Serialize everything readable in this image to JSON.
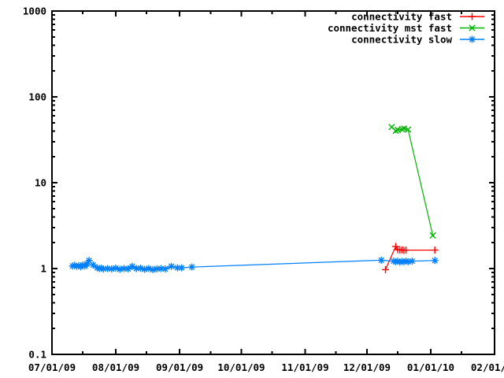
{
  "chart_data": {
    "type": "line",
    "title": "",
    "xlabel": "",
    "ylabel": "",
    "grid": false,
    "background": "#ffffff",
    "border_color": "#000000",
    "legend_position": "top-right-inside",
    "x_axis": {
      "scale": "time",
      "format": "MM/DD/YY",
      "range": [
        "07/01/09",
        "02/01/10"
      ],
      "major_tick_labels": [
        "07/01/09",
        "08/01/09",
        "09/01/09",
        "10/01/09",
        "11/01/09",
        "12/01/09",
        "01/01/10",
        "02/01/10"
      ],
      "minor_ticks": [
        "07/16/09",
        "08/16/09",
        "09/16/09",
        "10/16/09",
        "11/16/09",
        "12/16/09",
        "01/16/10"
      ]
    },
    "y_axis": {
      "scale": "log",
      "range": [
        0.1,
        1000
      ],
      "major_tick_labels": [
        "0.1",
        "1",
        "10",
        "100",
        "1000"
      ]
    },
    "series": [
      {
        "name": "connectivity fast",
        "color": "#ff0000",
        "marker": "plus",
        "points": [
          [
            "12/10/09",
            0.97
          ],
          [
            "12/15/09",
            1.81
          ],
          [
            "12/16/09",
            1.66
          ],
          [
            "12/17/09",
            1.64
          ],
          [
            "12/18/09",
            1.65
          ],
          [
            "12/19/09",
            1.63
          ],
          [
            "12/20/09",
            1.64
          ],
          [
            "01/03/10",
            1.64
          ]
        ]
      },
      {
        "name": "connectivity mst fast",
        "color": "#00b400",
        "marker": "cross",
        "points": [
          [
            "12/13/09",
            44.5
          ],
          [
            "12/15/09",
            40.3
          ],
          [
            "12/16/09",
            41.2
          ],
          [
            "12/18/09",
            42.0
          ],
          [
            "12/19/09",
            42.8
          ],
          [
            "12/21/09",
            41.6
          ],
          [
            "01/02/10",
            2.43
          ]
        ]
      },
      {
        "name": "connectivity slow",
        "color": "#0080ff",
        "marker": "star",
        "points": [
          [
            "07/11/09",
            1.07
          ],
          [
            "07/12/09",
            1.09
          ],
          [
            "07/13/09",
            1.06
          ],
          [
            "07/14/09",
            1.08
          ],
          [
            "07/15/09",
            1.05
          ],
          [
            "07/16/09",
            1.1
          ],
          [
            "07/17/09",
            1.07
          ],
          [
            "07/18/09",
            1.13
          ],
          [
            "07/19/09",
            1.24
          ],
          [
            "07/21/09",
            1.1
          ],
          [
            "07/23/09",
            1.02
          ],
          [
            "07/24/09",
            1.0
          ],
          [
            "07/25/09",
            1.01
          ],
          [
            "07/26/09",
            0.99
          ],
          [
            "07/28/09",
            1.0
          ],
          [
            "07/30/09",
            0.99
          ],
          [
            "08/01/09",
            1.01
          ],
          [
            "08/03/09",
            0.98
          ],
          [
            "08/05/09",
            1.0
          ],
          [
            "08/07/09",
            0.99
          ],
          [
            "08/09/09",
            1.06
          ],
          [
            "08/11/09",
            1.0
          ],
          [
            "08/13/09",
            1.01
          ],
          [
            "08/15/09",
            0.98
          ],
          [
            "08/17/09",
            1.0
          ],
          [
            "08/19/09",
            0.97
          ],
          [
            "08/21/09",
            0.99
          ],
          [
            "08/23/09",
            1.0
          ],
          [
            "08/25/09",
            0.99
          ],
          [
            "08/28/09",
            1.06
          ],
          [
            "08/31/09",
            1.02
          ],
          [
            "09/02/09",
            1.02
          ],
          [
            "09/07/09",
            1.04
          ],
          [
            "12/08/09",
            1.25
          ],
          [
            "12/14/09",
            1.22
          ],
          [
            "12/15/09",
            1.2
          ],
          [
            "12/16/09",
            1.22
          ],
          [
            "12/17/09",
            1.19
          ],
          [
            "12/18/09",
            1.21
          ],
          [
            "12/19/09",
            1.2
          ],
          [
            "12/20/09",
            1.22
          ],
          [
            "12/21/09",
            1.2
          ],
          [
            "12/23/09",
            1.22
          ],
          [
            "01/03/10",
            1.24
          ]
        ]
      }
    ]
  }
}
